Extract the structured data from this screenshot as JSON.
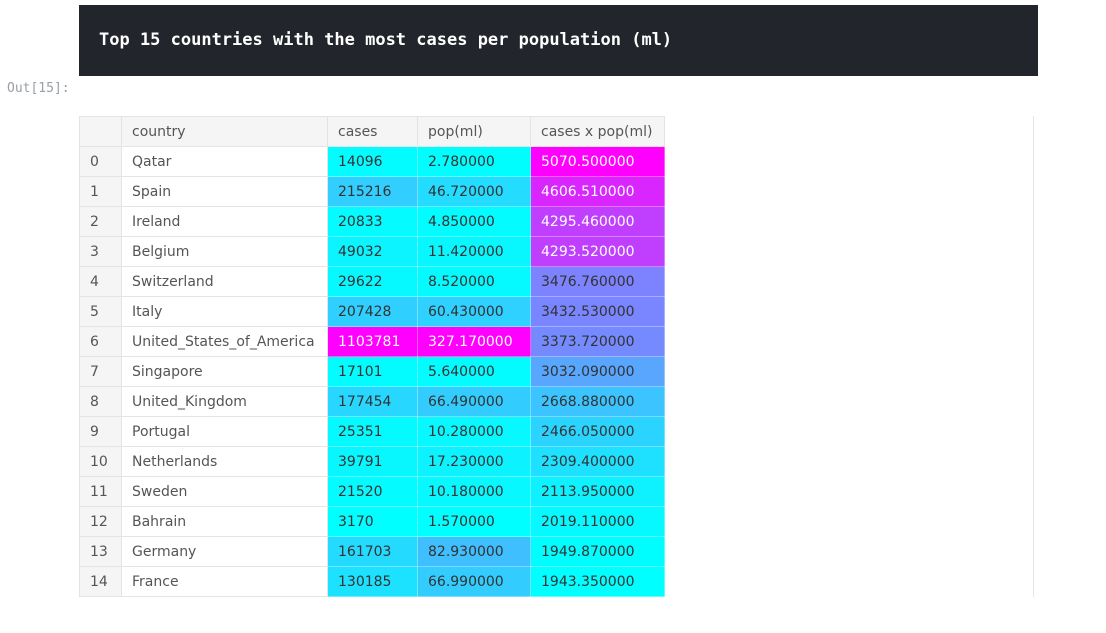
{
  "header": {
    "title": "Top 15 countries with the most cases per population (ml)"
  },
  "output_prompt": "Out[15]:",
  "table": {
    "columns": [
      "",
      "country",
      "cases",
      "pop(ml)",
      "cases x pop(ml)"
    ],
    "rows": [
      {
        "index": "0",
        "country": "Qatar",
        "cases": "14096",
        "pop": "2.780000",
        "product": "5070.500000"
      },
      {
        "index": "1",
        "country": "Spain",
        "cases": "215216",
        "pop": "46.720000",
        "product": "4606.510000"
      },
      {
        "index": "2",
        "country": "Ireland",
        "cases": "20833",
        "pop": "4.850000",
        "product": "4295.460000"
      },
      {
        "index": "3",
        "country": "Belgium",
        "cases": "49032",
        "pop": "11.420000",
        "product": "4293.520000"
      },
      {
        "index": "4",
        "country": "Switzerland",
        "cases": "29622",
        "pop": "8.520000",
        "product": "3476.760000"
      },
      {
        "index": "5",
        "country": "Italy",
        "cases": "207428",
        "pop": "60.430000",
        "product": "3432.530000"
      },
      {
        "index": "6",
        "country": "United_States_of_America",
        "cases": "1103781",
        "pop": "327.170000",
        "product": "3373.720000"
      },
      {
        "index": "7",
        "country": "Singapore",
        "cases": "17101",
        "pop": "5.640000",
        "product": "3032.090000"
      },
      {
        "index": "8",
        "country": "United_Kingdom",
        "cases": "177454",
        "pop": "66.490000",
        "product": "2668.880000"
      },
      {
        "index": "9",
        "country": "Portugal",
        "cases": "25351",
        "pop": "10.280000",
        "product": "2466.050000"
      },
      {
        "index": "10",
        "country": "Netherlands",
        "cases": "39791",
        "pop": "17.230000",
        "product": "2309.400000"
      },
      {
        "index": "11",
        "country": "Sweden",
        "cases": "21520",
        "pop": "10.180000",
        "product": "2113.950000"
      },
      {
        "index": "12",
        "country": "Bahrain",
        "cases": "3170",
        "pop": "1.570000",
        "product": "2019.110000"
      },
      {
        "index": "13",
        "country": "Germany",
        "cases": "161703",
        "pop": "82.930000",
        "product": "1949.870000"
      },
      {
        "index": "14",
        "country": "France",
        "cases": "130185",
        "pop": "66.990000",
        "product": "1943.350000"
      }
    ]
  },
  "colormap": {
    "low": "#00ffff",
    "high": "#ff00ff"
  }
}
